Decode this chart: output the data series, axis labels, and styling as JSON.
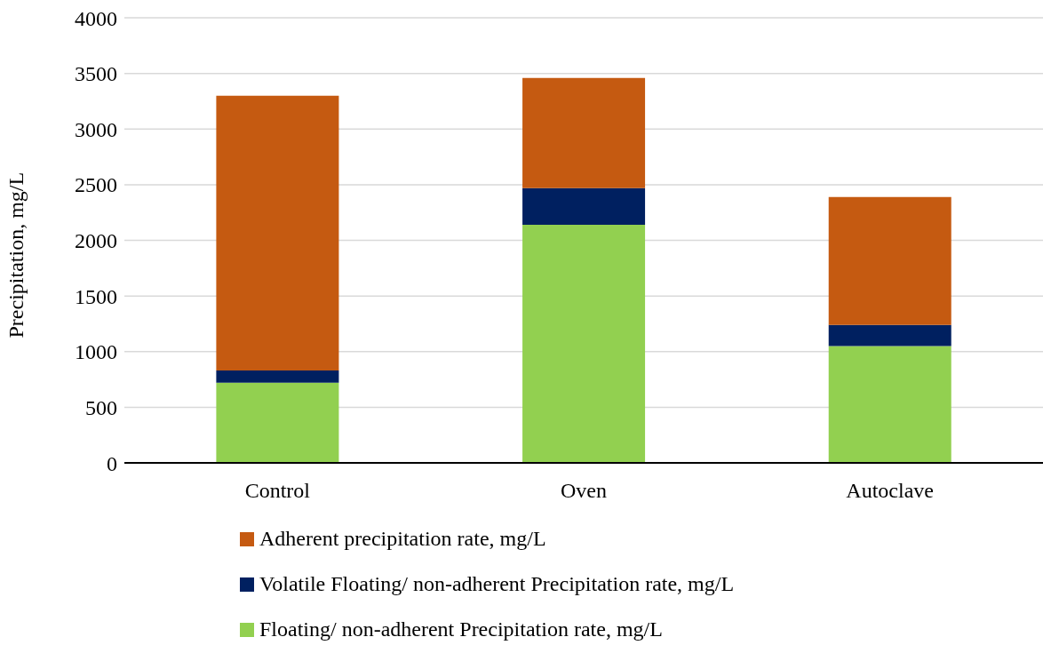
{
  "chart_data": {
    "type": "bar",
    "stacked": true,
    "ylabel": "Precipitation, mg/L",
    "categories": [
      "Control",
      "Oven",
      "Autoclave"
    ],
    "series": [
      {
        "name": "Floating/ non-adherent Precipitation rate, mg/L",
        "color": "#92d050",
        "values": [
          720,
          2140,
          1050
        ]
      },
      {
        "name": "Volatile Floating/ non-adherent Precipitation rate, mg/L",
        "color": "#002060",
        "values": [
          110,
          330,
          190
        ]
      },
      {
        "name": "Adherent precipitation rate, mg/L",
        "color": "#c55a11",
        "values": [
          2470,
          990,
          1150
        ]
      }
    ],
    "ylim": [
      0,
      4000
    ],
    "yticks": [
      0,
      500,
      1000,
      1500,
      2000,
      2500,
      3000,
      3500,
      4000
    ],
    "grid": "y",
    "legend": "bottom"
  }
}
